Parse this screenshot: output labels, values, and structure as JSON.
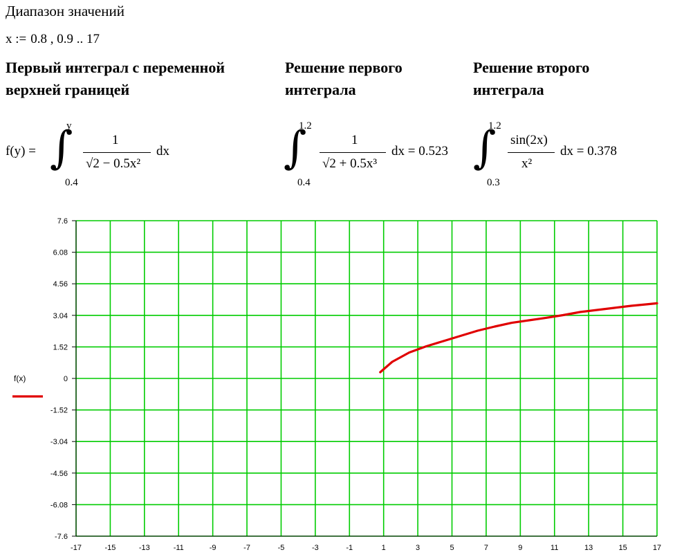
{
  "heading": "Диапазон значений",
  "range": {
    "var": "x :=",
    "value": "0.8 , 0.9 .. 17"
  },
  "headers": {
    "first_integral": [
      "Первый интеграл с переменной",
      "верхней границей"
    ],
    "first_solution": [
      "Решение первого",
      "интеграла"
    ],
    "second_solution": [
      "Решение второго",
      "интеграла"
    ]
  },
  "formulas": {
    "f_def": {
      "lhs": "f(y) =",
      "upper": "y",
      "lower": "0.4",
      "numerator": "1",
      "denominator": "√2 − 0.5x²",
      "dx": "dx"
    },
    "int1": {
      "upper": "1.2",
      "lower": "0.4",
      "numerator": "1",
      "denominator": "√2 + 0.5x³",
      "tail": "dx = 0.523"
    },
    "int2": {
      "upper": "1.2",
      "lower": "0.3",
      "numerator": "sin(2x)",
      "denominator": "x²",
      "tail": "dx = 0.378"
    }
  },
  "chart_data": {
    "type": "line",
    "legend": [
      "f(x)"
    ],
    "ylim": [
      -7.6,
      7.6
    ],
    "xlim": [
      -17,
      17
    ],
    "yticks": [
      "7.6",
      "6.08",
      "4.56",
      "3.04",
      "1.52",
      "0",
      "-1.52",
      "-3.04",
      "-4.56",
      "-6.08",
      "-7.6"
    ],
    "xticks": [
      "-17",
      "-15",
      "-13",
      "-11",
      "-9",
      "-7",
      "-5",
      "-3",
      "-1",
      "1",
      "3",
      "5",
      "7",
      "9",
      "11",
      "13",
      "15",
      "17"
    ],
    "grid": true,
    "grid_color": "#00cc00",
    "line_color": "#e00000",
    "series": [
      {
        "name": "f(x)",
        "x": [
          0.8,
          1.5,
          2.5,
          3.5,
          4.5,
          5.5,
          6.5,
          7.5,
          8.5,
          9.5,
          10.5,
          11.5,
          12.5,
          13.5,
          14.5,
          15.5,
          16.5,
          17
        ],
        "y": [
          0.3,
          0.8,
          1.25,
          1.55,
          1.8,
          2.05,
          2.3,
          2.5,
          2.68,
          2.8,
          2.92,
          3.05,
          3.2,
          3.3,
          3.4,
          3.5,
          3.58,
          3.62
        ]
      }
    ]
  }
}
